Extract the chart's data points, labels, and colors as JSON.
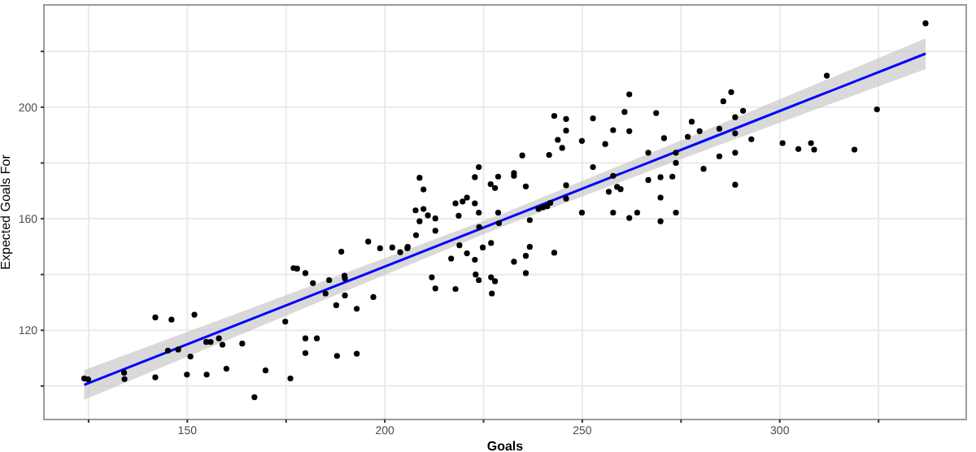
{
  "chart_data": {
    "type": "scatter",
    "xlabel": "Goals",
    "ylabel": "Expected Goals For",
    "xlim": [
      113.7,
      347.2
    ],
    "ylim": [
      88,
      236.7
    ],
    "xticks": [
      150,
      200,
      250,
      300,
      {
        "value": 125,
        "label": null
      },
      {
        "value": 175,
        "label": null
      },
      {
        "value": 225,
        "label": null
      },
      {
        "value": 275,
        "label": null
      },
      {
        "value": 325,
        "label": null
      }
    ],
    "yticks": [
      120,
      160,
      200,
      {
        "value": 100,
        "label": null
      },
      {
        "value": 140,
        "label": null
      },
      {
        "value": 180,
        "label": null
      },
      {
        "value": 220,
        "label": null
      }
    ],
    "grid": true,
    "legend": false,
    "marker": "circle",
    "series": [
      {
        "color": "#000000",
        "x": [
          123.9,
          124.9,
          134.0,
          134.1,
          141.9,
          141.9,
          145.1,
          146.0,
          147.7,
          149.9,
          150.8,
          151.8,
          154.8,
          154.9,
          155.9,
          158.0,
          158.9,
          159.9,
          163.9,
          167.0,
          169.8,
          174.8,
          176.1,
          176.9,
          177.8,
          179.9,
          179.9,
          179.9,
          181.8,
          182.8,
          185.0,
          185.9,
          187.7,
          187.9,
          189.0,
          189.8,
          189.9,
          189.9,
          192.9,
          192.9,
          195.8,
          197.1,
          198.8,
          201.9,
          203.9,
          205.7,
          205.8,
          207.8,
          207.9,
          208.8,
          208.8,
          209.8,
          209.8,
          210.9,
          211.9,
          212.8,
          212.8,
          212.8,
          216.8,
          217.9,
          217.9,
          218.7,
          218.9,
          219.7,
          220.8,
          220.8,
          222.8,
          222.8,
          222.8,
          223.0,
          223.8,
          223.9,
          223.8,
          223.8,
          224.8,
          226.8,
          226.9,
          226.9,
          227.1,
          227.9,
          227.9,
          228.7,
          228.7,
          228.9,
          232.7,
          232.7,
          232.7,
          234.8,
          235.7,
          235.7,
          235.7,
          236.7,
          236.7,
          238.9,
          240.0,
          241.1,
          241.6,
          241.9,
          242.9,
          242.9,
          243.8,
          244.9,
          245.9,
          245.9,
          245.9,
          245.9,
          249.9,
          249.9,
          252.7,
          252.7,
          255.8,
          256.7,
          257.8,
          257.8,
          257.8,
          258.8,
          259.7,
          260.7,
          261.9,
          261.9,
          261.9,
          263.9,
          266.7,
          266.7,
          268.7,
          269.8,
          269.8,
          269.8,
          270.7,
          272.8,
          273.7,
          273.7,
          273.7,
          276.7,
          277.7,
          279.7,
          280.7,
          284.7,
          284.7,
          285.7,
          287.7,
          288.7,
          288.7,
          288.7,
          288.7,
          290.7,
          292.8,
          300.7,
          304.7,
          307.9,
          308.7,
          311.9,
          318.9,
          324.6,
          336.9
        ],
        "values": [
          102.7,
          102.4,
          104.8,
          102.5,
          124.6,
          103.1,
          112.7,
          123.8,
          113.1,
          104.1,
          110.6,
          125.6,
          115.8,
          104.1,
          115.8,
          117.1,
          114.8,
          106.2,
          115.2,
          96.0,
          105.6,
          123.1,
          102.7,
          142.3,
          142.1,
          140.5,
          117.1,
          111.8,
          136.9,
          117.1,
          133.2,
          138.0,
          129.0,
          110.8,
          148.2,
          139.6,
          138.6,
          132.5,
          127.7,
          111.6,
          151.8,
          131.9,
          149.4,
          149.7,
          148.0,
          149.4,
          149.9,
          163.0,
          154.1,
          174.7,
          159.1,
          170.5,
          163.5,
          161.2,
          139.0,
          160.1,
          155.7,
          135.0,
          145.7,
          134.8,
          165.5,
          161.1,
          150.5,
          166.2,
          167.6,
          147.6,
          174.9,
          165.5,
          145.3,
          140.0,
          178.5,
          157.0,
          162.2,
          138.0,
          149.7,
          172.4,
          151.3,
          139.0,
          133.2,
          171.0,
          137.6,
          175.1,
          162.2,
          158.4,
          176.4,
          175.4,
          144.6,
          182.7,
          171.6,
          140.5,
          146.7,
          159.5,
          149.9,
          163.5,
          164.1,
          164.5,
          182.9,
          165.7,
          196.9,
          147.8,
          188.3,
          185.4,
          195.8,
          191.6,
          172.0,
          167.2,
          187.9,
          162.2,
          196.0,
          178.5,
          186.8,
          169.7,
          191.8,
          175.4,
          162.2,
          171.4,
          170.6,
          198.3,
          204.6,
          191.4,
          160.3,
          162.2,
          183.7,
          173.9,
          197.9,
          174.9,
          167.6,
          159.1,
          188.9,
          175.1,
          183.7,
          180.0,
          162.2,
          189.4,
          194.8,
          191.4,
          177.9,
          192.3,
          182.4,
          202.1,
          205.4,
          196.4,
          190.6,
          183.7,
          172.2,
          198.7,
          188.5,
          187.1,
          185.0,
          187.1,
          184.8,
          211.3,
          184.8,
          199.2,
          230.1
        ]
      },
      {
        "type": "line",
        "color": "#0000ff",
        "marker": "none",
        "x": [
          123.9,
          180,
          230,
          280,
          336.9
        ],
        "values": [
          100.4,
          131.7,
          159.6,
          187.5,
          219.2
        ],
        "lower": [
          95.1,
          128.2,
          157.3,
          184.0,
          213.7
        ],
        "upper": [
          105.7,
          135.2,
          161.9,
          191.0,
          224.7
        ]
      }
    ]
  }
}
